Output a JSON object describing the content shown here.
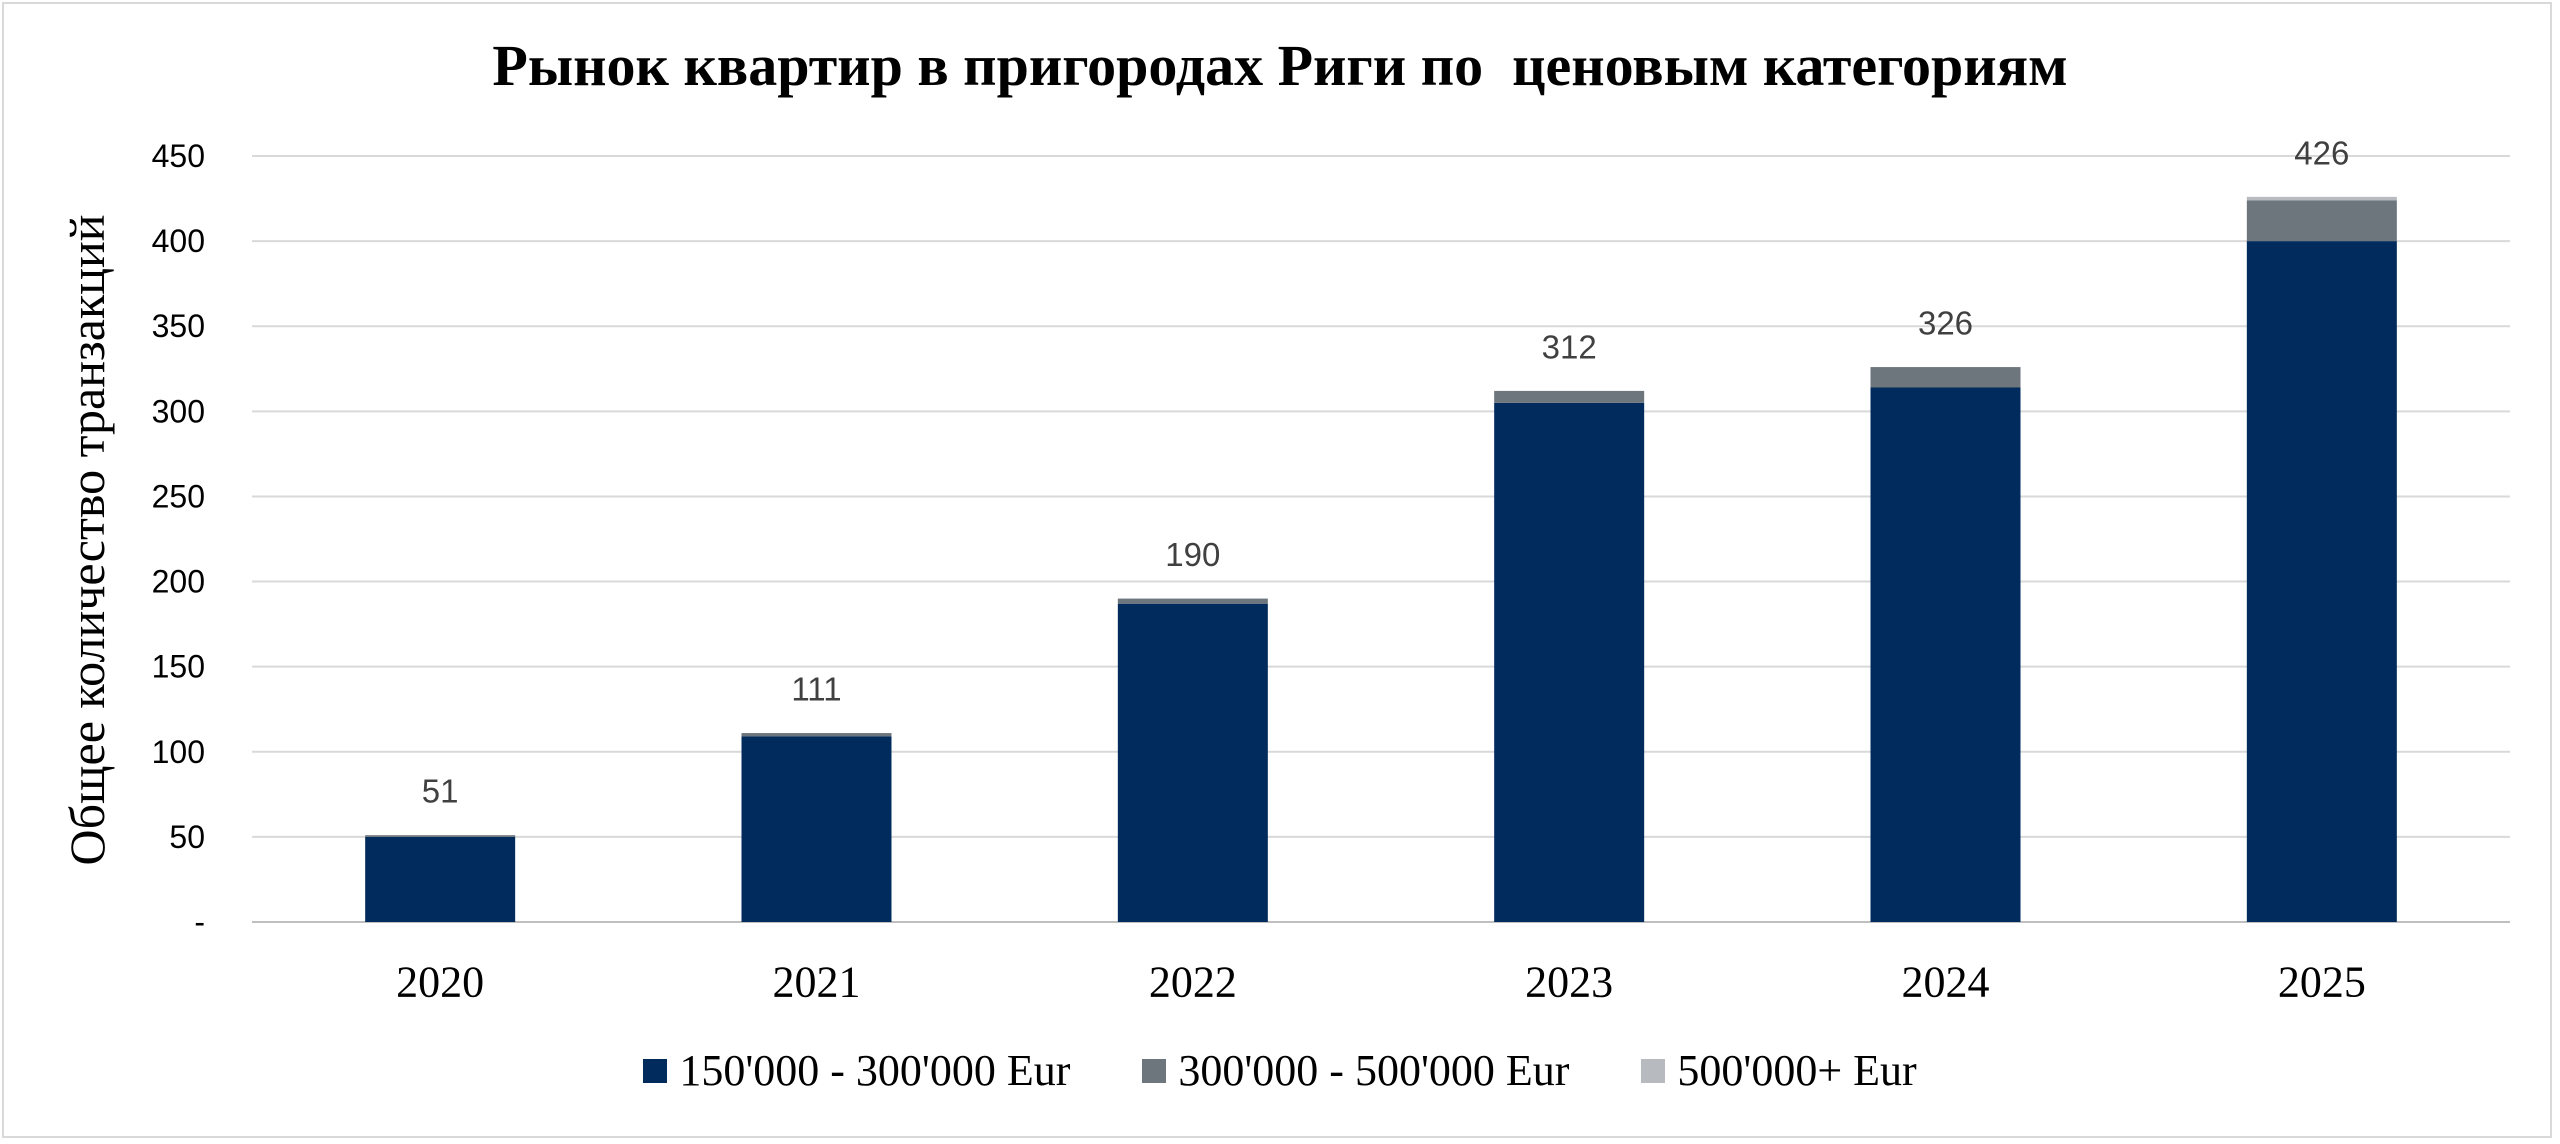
{
  "chart_data": {
    "type": "bar",
    "stacked": true,
    "title": "Рынок квартир в пригородах Риги по  ценовым категориям",
    "ylabel": "Общее количество транзакций",
    "xlabel": "",
    "categories": [
      "2020",
      "2021",
      "2022",
      "2023",
      "2024",
      "2025"
    ],
    "series": [
      {
        "name": "150'000 - 300'000 Eur",
        "color": "#002b5c",
        "values": [
          50,
          109,
          187,
          305,
          314,
          400
        ]
      },
      {
        "name": "300'000 - 500'000 Eur",
        "color": "#6d757d",
        "values": [
          1,
          2,
          3,
          7,
          12,
          24
        ]
      },
      {
        "name": "500'000+ Eur",
        "color": "#b7bbbf",
        "values": [
          0,
          0,
          0,
          0,
          0,
          2
        ]
      }
    ],
    "totals": [
      "51",
      "111",
      "190",
      "312",
      "326",
      "426"
    ],
    "ylim": [
      0,
      450
    ],
    "yticks": [
      0,
      50,
      100,
      150,
      200,
      250,
      300,
      350,
      400,
      450
    ],
    "ytick_labels": [
      "-",
      "50",
      "100",
      "150",
      "200",
      "250",
      "300",
      "350",
      "400",
      "450"
    ],
    "grid": true,
    "legend_position": "bottom"
  }
}
